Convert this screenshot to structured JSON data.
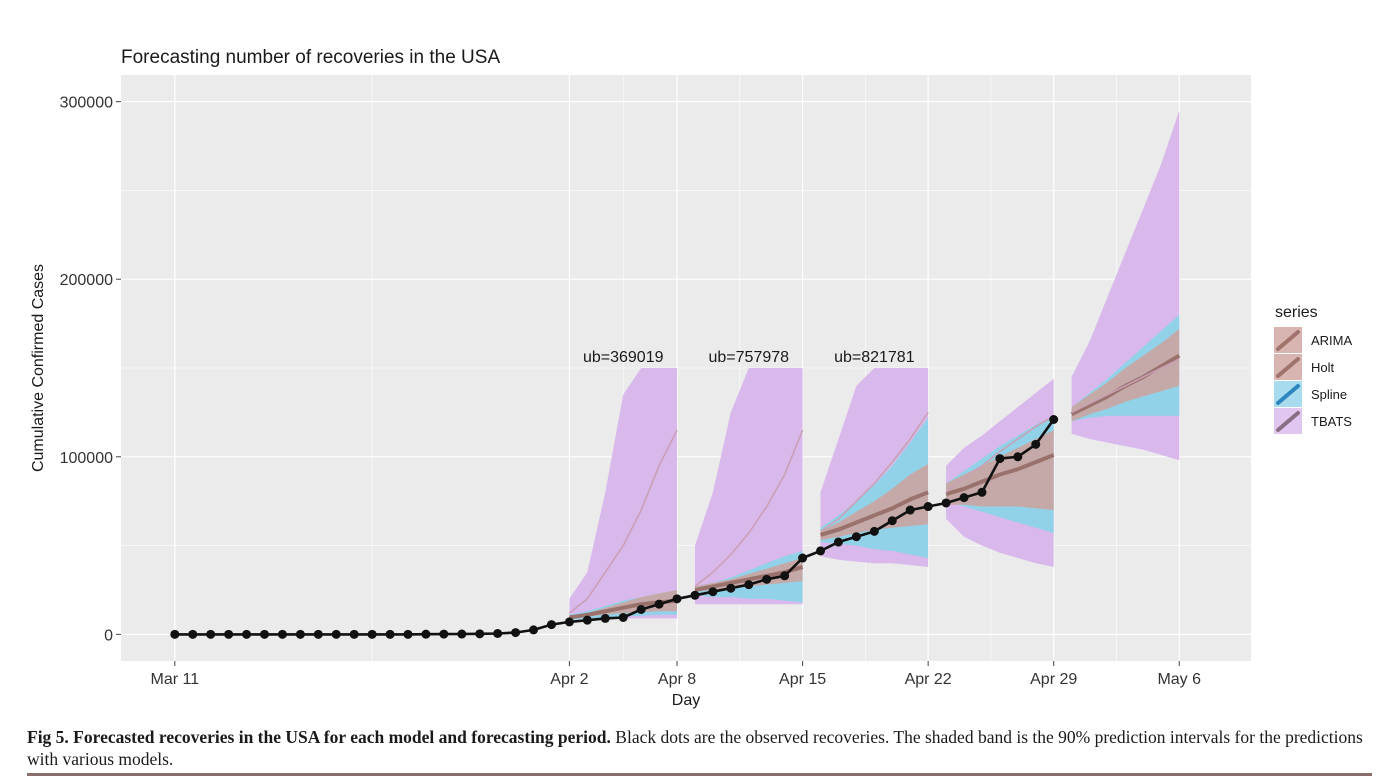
{
  "chart_data": {
    "type": "line",
    "title": "Forecasting number of recoveries  in the USA",
    "xlabel": "Day",
    "ylabel": "Cumulative Confirmed Cases",
    "x_ticks": [
      "Mar 11",
      "Apr 2",
      "Apr 8",
      "Apr 15",
      "Apr 22",
      "Apr 29",
      "May 6"
    ],
    "x_tick_days": [
      0,
      22,
      28,
      35,
      42,
      49,
      56
    ],
    "y_ticks": [
      0,
      100000,
      200000,
      300000
    ],
    "xlim": [
      -3,
      60
    ],
    "ylim": [
      -15000,
      315000
    ],
    "grid": true,
    "legend": {
      "title": "series",
      "position": "right",
      "entries": [
        {
          "name": "ARIMA",
          "color": "#a0736d"
        },
        {
          "name": "Holt",
          "color": "#a0736d"
        },
        {
          "name": "Spline",
          "color": "#2e86c1"
        },
        {
          "name": "TBATS",
          "color": "#8a6e84"
        }
      ]
    },
    "annotations": [
      "ub=369019",
      "ub=757978",
      "ub=821781"
    ],
    "colors": {
      "panel": "#ebebeb",
      "tbats_band": "#d9b8ec",
      "spline_band": "#92d2e8",
      "arima_band": "#cea29c",
      "model_line": "#9a726c",
      "observed": "#111111"
    },
    "observed": {
      "name": "Observed recoveries",
      "x": [
        0,
        1,
        2,
        3,
        4,
        5,
        6,
        7,
        8,
        9,
        10,
        11,
        12,
        13,
        14,
        15,
        16,
        17,
        18,
        19,
        20,
        21,
        22,
        23,
        24,
        25,
        26,
        27,
        28,
        29,
        30,
        31,
        32,
        33,
        34,
        35,
        36,
        37,
        38,
        39,
        40,
        41,
        42,
        43,
        44,
        45,
        46,
        47,
        48,
        49
      ],
      "y": [
        0,
        0,
        0,
        0,
        0,
        0,
        0,
        0,
        0,
        0,
        0,
        0,
        0,
        0,
        100,
        150,
        200,
        300,
        500,
        1000,
        2500,
        5500,
        7000,
        8000,
        9000,
        9500,
        14000,
        17000,
        20000,
        22000,
        24000,
        26000,
        28000,
        31000,
        33000,
        43000,
        47000,
        52000,
        55000,
        58000,
        64000,
        70000,
        72000,
        74000,
        77000,
        80000,
        99000,
        100000,
        107000,
        121000
      ]
    },
    "forecast_periods": [
      {
        "x": [
          22,
          23,
          24,
          25,
          26,
          27,
          28
        ],
        "tbats_upper": [
          20000,
          35000,
          80000,
          135000,
          150000,
          150000,
          150000
        ],
        "tbats_lower": [
          10000,
          9000,
          9000,
          9000,
          9000,
          9000,
          9000
        ],
        "spline_upper": [
          11000,
          13000,
          16000,
          19000,
          21000,
          23000,
          25000
        ],
        "spline_lower": [
          8000,
          9000,
          9500,
          10000,
          10500,
          11000,
          11000
        ],
        "arima_upper": [
          10000,
          12000,
          15000,
          18000,
          21000,
          23000,
          25000
        ],
        "arima_lower": [
          9000,
          10000,
          11000,
          12000,
          12500,
          13000,
          13000
        ],
        "arima_mean": [
          9500,
          11000,
          13000,
          15000,
          17000,
          18000,
          19000
        ],
        "tbats_mean": [
          12000,
          20000,
          35000,
          50000,
          70000,
          95000,
          115000
        ]
      },
      {
        "x": [
          29,
          30,
          31,
          32,
          33,
          34,
          35
        ],
        "tbats_upper": [
          50000,
          80000,
          125000,
          150000,
          150000,
          150000,
          150000
        ],
        "tbats_lower": [
          17000,
          17000,
          17000,
          17000,
          17000,
          17000,
          17000
        ],
        "spline_upper": [
          27000,
          29000,
          32000,
          36000,
          40000,
          44000,
          47000
        ],
        "spline_lower": [
          22000,
          21000,
          21000,
          20000,
          20000,
          19000,
          18000
        ],
        "arima_upper": [
          27000,
          29000,
          31000,
          34000,
          37000,
          40000,
          43000
        ],
        "arima_lower": [
          24000,
          25000,
          26000,
          27000,
          28000,
          29000,
          30000
        ],
        "arima_mean": [
          25000,
          27000,
          29000,
          31000,
          33000,
          35000,
          38000
        ],
        "tbats_mean": [
          27000,
          35000,
          45000,
          57000,
          72000,
          90000,
          115000
        ]
      },
      {
        "x": [
          36,
          37,
          38,
          39,
          40,
          41,
          42
        ],
        "tbats_upper": [
          80000,
          110000,
          140000,
          150000,
          150000,
          150000,
          150000
        ],
        "tbats_lower": [
          44000,
          42000,
          41000,
          40000,
          40000,
          39000,
          38000
        ],
        "spline_upper": [
          60000,
          67000,
          75000,
          84000,
          95000,
          108000,
          122000
        ],
        "spline_lower": [
          52000,
          51000,
          50000,
          48000,
          47000,
          45000,
          43000
        ],
        "arima_upper": [
          58000,
          63000,
          69000,
          75000,
          82000,
          90000,
          96000
        ],
        "arima_lower": [
          53000,
          55000,
          57000,
          59000,
          60000,
          61000,
          62000
        ],
        "arima_mean": [
          56000,
          59000,
          63000,
          67000,
          71000,
          76000,
          80000
        ],
        "tbats_mean": [
          58000,
          65000,
          75000,
          85000,
          97000,
          110000,
          125000
        ]
      },
      {
        "x": [
          43,
          44,
          45,
          46,
          47,
          48,
          49
        ],
        "tbats_upper": [
          95000,
          105000,
          112000,
          120000,
          128000,
          136000,
          144000
        ],
        "tbats_lower": [
          65000,
          55000,
          50000,
          46000,
          43000,
          40000,
          38000
        ],
        "spline_upper": [
          85000,
          92000,
          99000,
          106000,
          112000,
          118000,
          123000
        ],
        "spline_lower": [
          75000,
          72000,
          69000,
          66000,
          63000,
          60000,
          57000
        ],
        "arima_upper": [
          85000,
          90000,
          95000,
          100000,
          105000,
          110000,
          115000
        ],
        "arima_lower": [
          73000,
          73000,
          72000,
          72000,
          72000,
          71000,
          70000
        ],
        "arima_mean": [
          79000,
          82000,
          86000,
          90000,
          93000,
          97000,
          101000
        ],
        "tbats_mean": [
          80000,
          88000,
          95000,
          103000,
          110000,
          117000,
          123000
        ]
      },
      {
        "x": [
          50,
          51,
          52,
          53,
          54,
          55,
          56
        ],
        "tbats_upper": [
          145000,
          165000,
          190000,
          215000,
          240000,
          265000,
          295000
        ],
        "tbats_lower": [
          113000,
          110000,
          108000,
          106000,
          104000,
          101000,
          98000
        ],
        "spline_upper": [
          128000,
          136000,
          144000,
          153000,
          162000,
          171000,
          180000
        ],
        "spline_lower": [
          120000,
          122000,
          123000,
          123000,
          123000,
          123000,
          123000
        ],
        "arima_upper": [
          128000,
          135000,
          142000,
          150000,
          157000,
          164000,
          172000
        ],
        "arima_lower": [
          120000,
          124000,
          127000,
          131000,
          134000,
          137000,
          140000
        ],
        "arima_mean": [
          124000,
          129000,
          134000,
          140000,
          145000,
          151000,
          157000
        ],
        "tbats_mean": [
          125000,
          130000,
          135000,
          140000,
          145000,
          150000,
          155000
        ]
      }
    ]
  },
  "caption": {
    "bold": "Fig 5. Forecasted recoveries in the USA for each model and forecasting period.",
    "text": " Black dots are the observed recoveries. The shaded band is the 90% prediction intervals for the predictions with various models."
  }
}
